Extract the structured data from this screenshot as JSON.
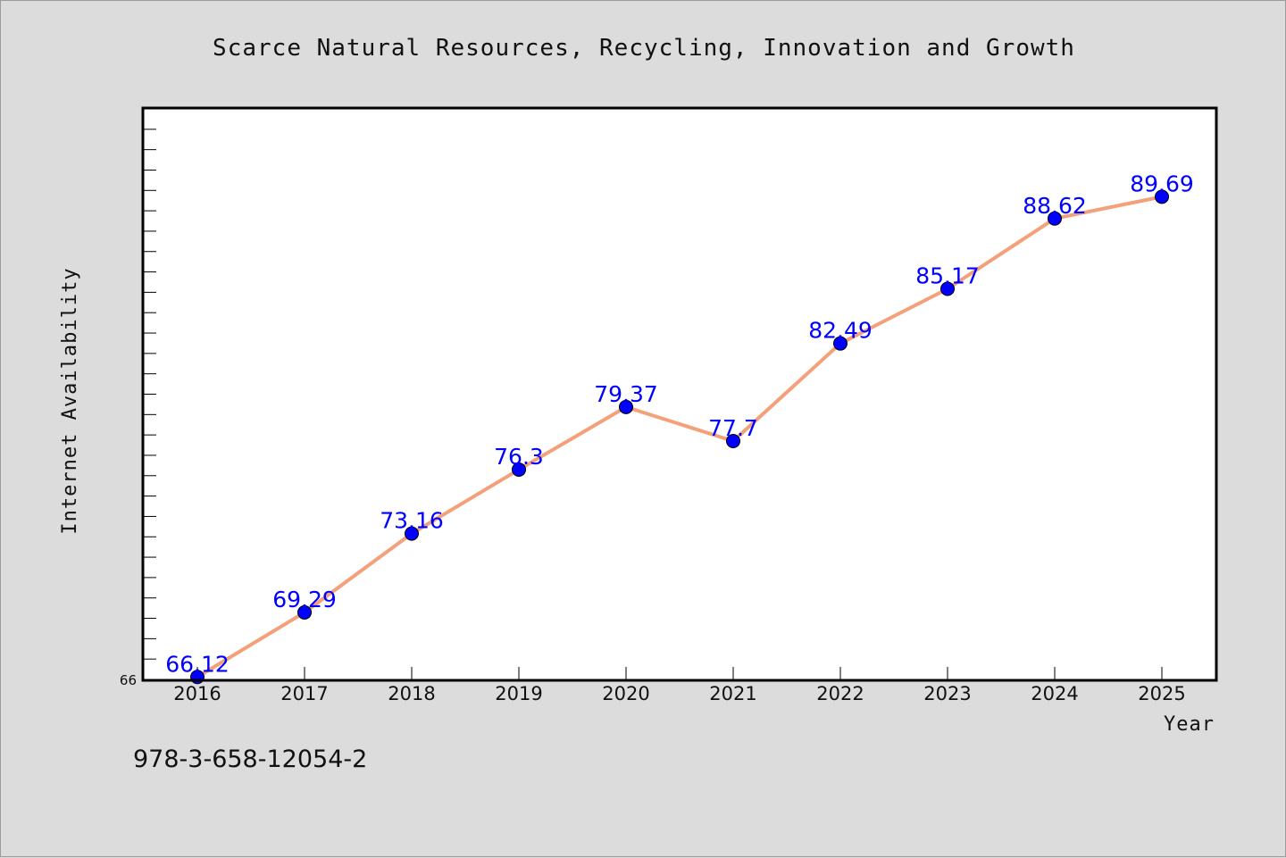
{
  "chart_data": {
    "type": "line",
    "title": "Scarce Natural Resources, Recycling, Innovation and Growth",
    "xlabel": "Year",
    "ylabel": "Internet Availability",
    "categories": [
      "2016",
      "2017",
      "2018",
      "2019",
      "2020",
      "2021",
      "2022",
      "2023",
      "2024",
      "2025"
    ],
    "series": [
      {
        "values": [
          66.12,
          69.29,
          73.16,
          76.3,
          79.37,
          77.7,
          82.49,
          85.17,
          88.62,
          89.69
        ],
        "data_labels": [
          "66.12",
          "69.29",
          "73.16",
          "76.3",
          "79.37",
          "77.7",
          "82.49",
          "85.17",
          "88.62",
          "89.69"
        ]
      }
    ],
    "ylim": [
      66,
      94
    ],
    "y_tick_labels": [
      "66"
    ],
    "line_color": "#f4a07a",
    "marker_color": "#0000ff",
    "label_color": "#0000ff",
    "grid": false,
    "legend": "none"
  },
  "footer": {
    "isbn": "978-3-658-12054-2"
  }
}
